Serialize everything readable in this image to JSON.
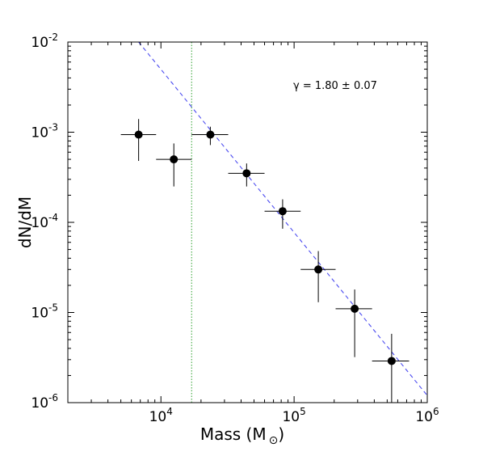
{
  "chart_data": {
    "type": "scatter",
    "title": "",
    "xlabel": "Mass (M",
    "xlabel_symbol": "⊙",
    "ylabel": "dN/dM",
    "xscale": "log",
    "yscale": "log",
    "xlim": [
      2000,
      1000000
    ],
    "ylim": [
      1e-06,
      0.01
    ],
    "grid": false,
    "x_tick_labels": [
      {
        "base": "10",
        "exp": "4",
        "value": 10000
      },
      {
        "base": "10",
        "exp": "5",
        "value": 100000
      },
      {
        "base": "10",
        "exp": "6",
        "value": 1000000
      }
    ],
    "y_tick_labels": [
      {
        "base": "10",
        "exp": "-6",
        "value": 1e-06
      },
      {
        "base": "10",
        "exp": "-5",
        "value": 1e-05
      },
      {
        "base": "10",
        "exp": "-4",
        "value": 0.0001
      },
      {
        "base": "10",
        "exp": "-3",
        "value": 0.001
      },
      {
        "base": "10",
        "exp": "-2",
        "value": 0.01
      }
    ],
    "points": [
      {
        "x": 6800,
        "y": 0.00094,
        "x_lo": 5000,
        "x_hi": 9200,
        "y_lo": 0.00048,
        "y_hi": 0.0014
      },
      {
        "x": 12500,
        "y": 0.0005,
        "x_lo": 9200,
        "x_hi": 17000,
        "y_lo": 0.00025,
        "y_hi": 0.00075
      },
      {
        "x": 23500,
        "y": 0.00094,
        "x_lo": 17000,
        "x_hi": 32000,
        "y_lo": 0.00072,
        "y_hi": 0.00115
      },
      {
        "x": 44000,
        "y": 0.00035,
        "x_lo": 32000,
        "x_hi": 60000,
        "y_lo": 0.00025,
        "y_hi": 0.00045
      },
      {
        "x": 82000,
        "y": 0.000133,
        "x_lo": 60000,
        "x_hi": 112000,
        "y_lo": 8.5e-05,
        "y_hi": 0.00018
      },
      {
        "x": 152000,
        "y": 3e-05,
        "x_lo": 112000,
        "x_hi": 205000,
        "y_lo": 1.3e-05,
        "y_hi": 4.8e-05
      },
      {
        "x": 285000,
        "y": 1.1e-05,
        "x_lo": 205000,
        "x_hi": 385000,
        "y_lo": 3.2e-06,
        "y_hi": 1.8e-05
      },
      {
        "x": 540000,
        "y": 2.9e-06,
        "x_lo": 385000,
        "x_hi": 730000,
        "y_lo": 1e-06,
        "y_hi": 5.8e-06
      }
    ],
    "fit_line": {
      "style": "dashed",
      "color": "#4a4af0",
      "points": [
        [
          6800,
          0.01
        ],
        [
          1000000,
          1.2e-06
        ]
      ]
    },
    "threshold_line": {
      "style": "dotted",
      "color": "#2ca02c",
      "x": 17000
    },
    "annotation": "γ = 1.80 ± 0.07",
    "colors": {
      "points": "#000000",
      "fit": "#4a4af0",
      "threshold": "#2ca02c"
    }
  }
}
